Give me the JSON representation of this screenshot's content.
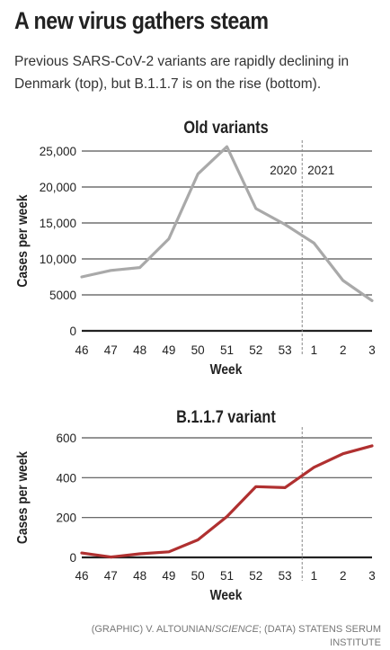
{
  "title": "A new virus gathers steam",
  "subtitle": "Previous SARS-CoV-2 variants are rapidly declining in Denmark (top), but B.1.1.7 is on the rise (bottom).",
  "credit": {
    "prefix": "(GRAPHIC) V. ALTOUNIAN/",
    "italic": "SCIENCE",
    "suffix": "; (DATA) STATENS SERUM INSTITUTE"
  },
  "year_labels": {
    "left": "2020",
    "right": "2021"
  },
  "chart_data": [
    {
      "type": "line",
      "title": "Old variants",
      "xlabel": "Week",
      "ylabel": "Cases per week",
      "x": [
        "46",
        "47",
        "48",
        "49",
        "50",
        "51",
        "52",
        "53",
        "1",
        "2",
        "3"
      ],
      "series": [
        {
          "values": [
            7500,
            8400,
            8800,
            12800,
            21800,
            25600,
            17000,
            14800,
            12200,
            7000,
            4200
          ],
          "color": "#a9a9a9"
        }
      ],
      "ylim": [
        0,
        25000
      ],
      "yticks": [
        0,
        5000,
        10000,
        15000,
        20000,
        25000
      ],
      "ytick_labels": [
        "0",
        "5000",
        "10,000",
        "15,000",
        "20,000",
        "25,000"
      ],
      "grid": true,
      "year_divider_after": "53"
    },
    {
      "type": "line",
      "title": "B.1.1.7 variant",
      "xlabel": "Week",
      "ylabel": "Cases per week",
      "x": [
        "46",
        "47",
        "48",
        "49",
        "50",
        "51",
        "52",
        "53",
        "1",
        "2",
        "3"
      ],
      "series": [
        {
          "values": [
            22,
            2,
            18,
            28,
            88,
            205,
            355,
            350,
            452,
            520,
            560
          ],
          "color": "#b03030"
        }
      ],
      "ylim": [
        0,
        600
      ],
      "yticks": [
        0,
        200,
        400,
        600
      ],
      "ytick_labels": [
        "0",
        "200",
        "400",
        "600"
      ],
      "grid": true,
      "year_divider_after": "53"
    }
  ]
}
